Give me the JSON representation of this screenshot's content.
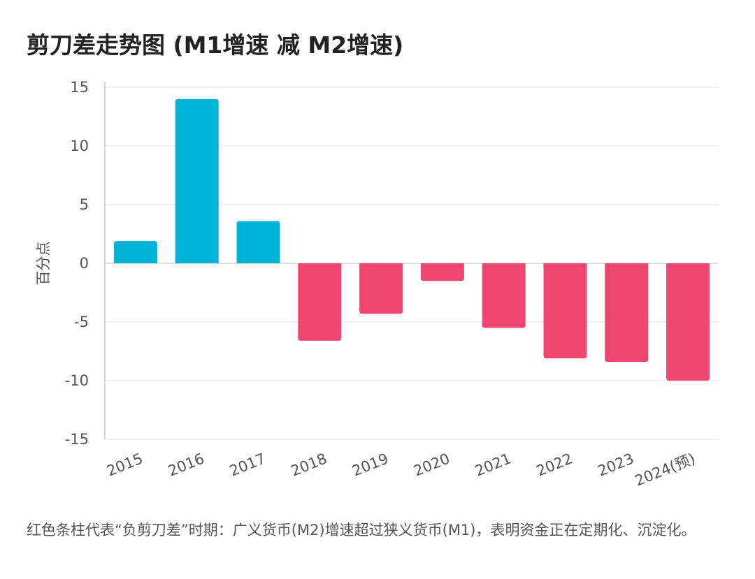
{
  "title": "剪刀差走势图 (M1增速 减 M2增速)",
  "caption": "红色条柱代表“负剪刀差”时期：广义货币(M2)增速超过狭义货币(M1)，表明资金正在定期化、沉淀化。",
  "colors": {
    "positive": "#00b4d8",
    "negative": "#ef476f",
    "grid": "#e6e6ea",
    "axis": "#cccccc",
    "text": "#555555"
  },
  "chart_data": {
    "type": "bar",
    "title": "剪刀差走势图 (M1增速 减 M2增速)",
    "xlabel": "",
    "ylabel": "百分点",
    "categories": [
      "2015",
      "2016",
      "2017",
      "2018",
      "2019",
      "2020",
      "2021",
      "2022",
      "2023",
      "2024(预)"
    ],
    "values": [
      1.9,
      14.0,
      3.6,
      -6.6,
      -4.3,
      -1.5,
      -5.5,
      -8.1,
      -8.4,
      -10.0
    ],
    "ylim": [
      -15,
      15
    ],
    "yticks": [
      15,
      10,
      5,
      0,
      -5,
      -10,
      -15
    ],
    "grid": true
  }
}
